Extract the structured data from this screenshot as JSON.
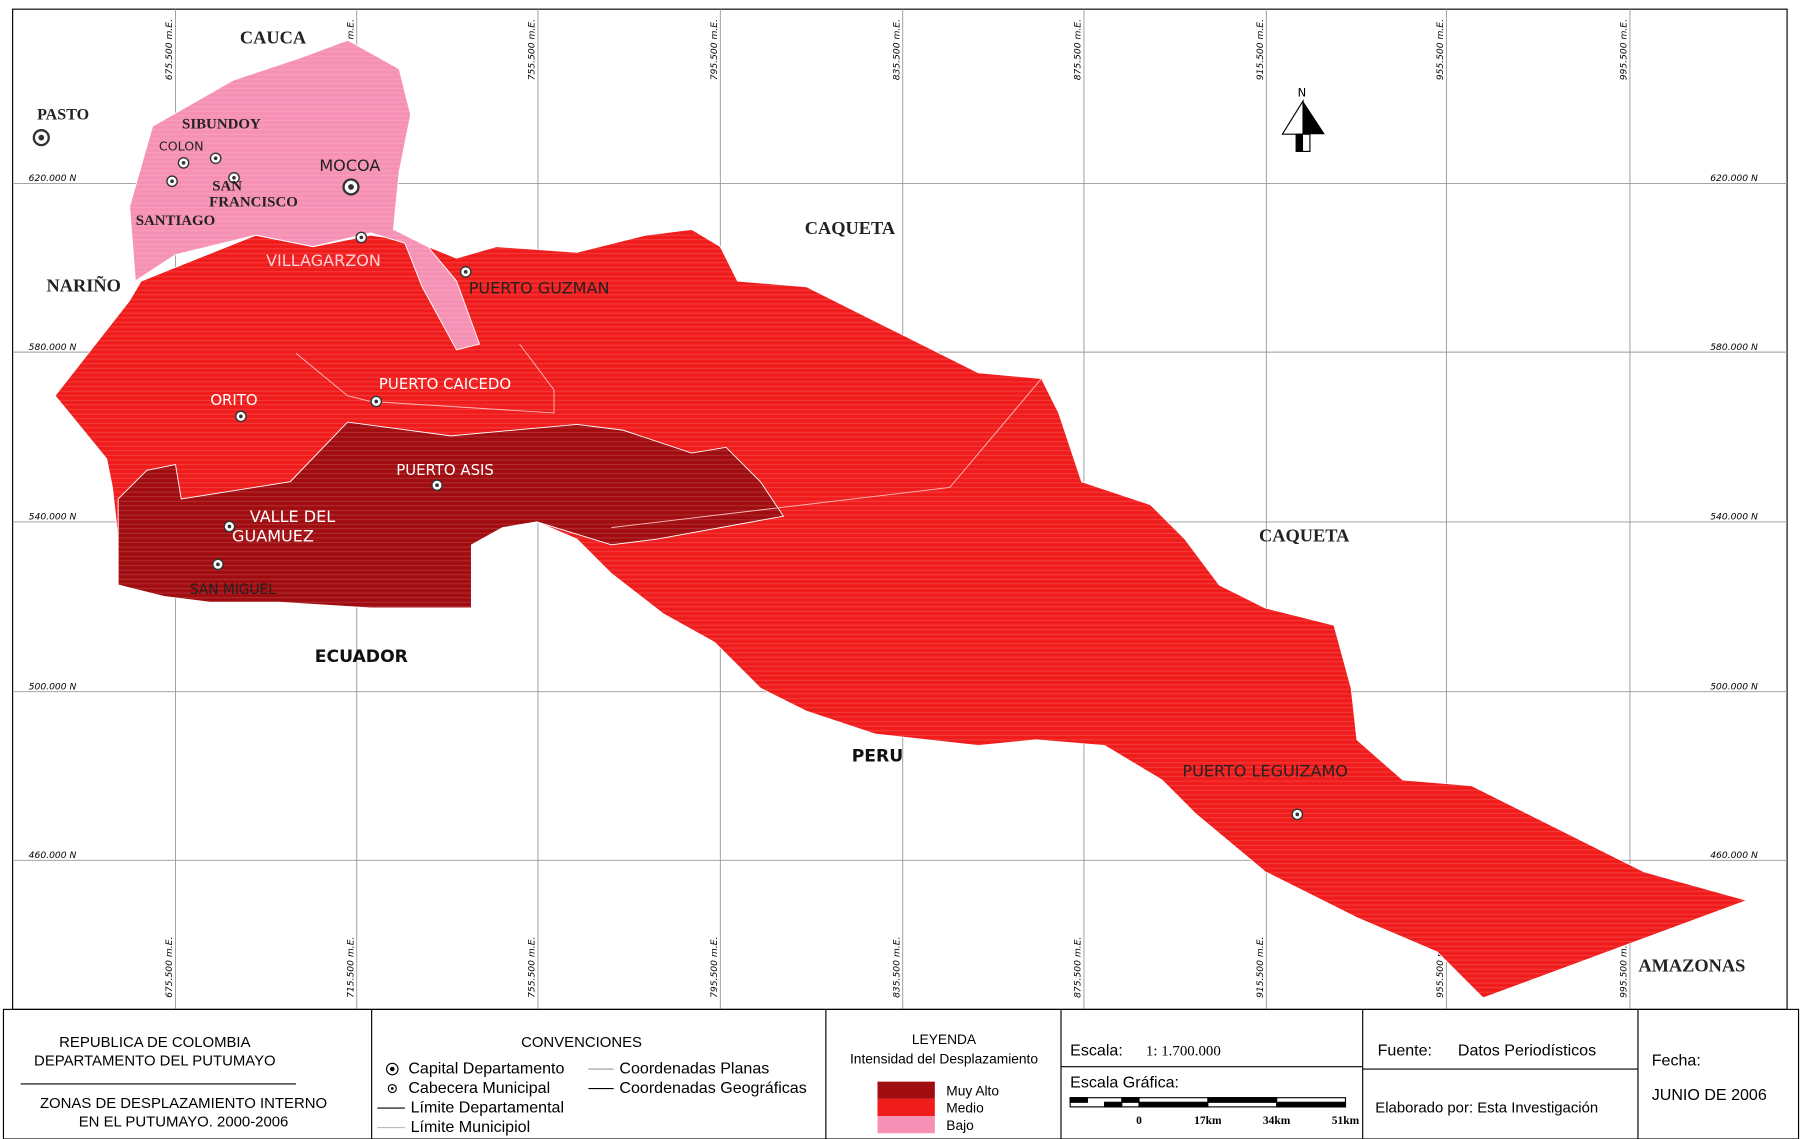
{
  "map": {
    "labels": [
      "CAUCA",
      "PASTO",
      "SIBUNDOY",
      "COLON",
      "SAN",
      "FRANCISCO",
      "MOCOA",
      "SANTIAGO",
      "CAQUETA",
      "NARIÑO",
      "VILLAGARZON",
      "PUERTO GUZMAN",
      "PUERTO CAICEDO",
      "ORITO",
      "PUERTO ASIS",
      "VALLE DEL",
      "GUAMUEZ",
      "SAN MIGUEL",
      "ECUADOR",
      "CAQUETA",
      "PERU",
      "PUERTO LEGUIZAMO",
      "AMAZONAS",
      "N"
    ],
    "eastings": [
      "675.500 m.E.",
      "715.500 m.E.",
      "755.500 m.E.",
      "795.500 m.E.",
      "835.500 m.E.",
      "875.500 m.E.",
      "915.500 m.E.",
      "955.500 m.E.",
      "995.500 m.E."
    ],
    "northings": [
      "620.000 N",
      "580.000 N",
      "540.000 N",
      "500.000 N",
      "460.000 N"
    ]
  },
  "footer": {
    "title": [
      "REPUBLICA DE COLOMBIA",
      "DEPARTAMENTO DEL PUTUMAYO",
      "ZONAS DE DESPLAZAMIENTO INTERNO",
      "EN EL PUTUMAYO. 2000-2006"
    ],
    "conventions": {
      "title": "CONVENCIONES",
      "items": [
        "Capital Departamento",
        "Cabecera Municipal",
        "Límite Departamental",
        "Límite Municipiol",
        "Coordenadas Planas",
        "Coordenadas Geográficas"
      ]
    },
    "legend": {
      "title": "LEYENDA",
      "subtitle": "Intensidad del Desplazamiento",
      "items": [
        {
          "label": "Muy Alto",
          "color": "#a00c10"
        },
        {
          "label": "Medio",
          "color": "#f01c1c"
        },
        {
          "label": "Bajo",
          "color": "#f690b4"
        }
      ]
    },
    "scale": {
      "label": "Escala:",
      "value": "1: 1.700.000",
      "graphic": "Escala Gráfica:",
      "ticks": [
        "0",
        "17km",
        "34km",
        "51km"
      ]
    },
    "source": {
      "label": "Fuente:",
      "value": "Datos Periodísticos",
      "author": "Elaborado por: Esta Investigación"
    },
    "date": {
      "label": "Fecha:",
      "value": "JUNIO DE 2006"
    }
  }
}
